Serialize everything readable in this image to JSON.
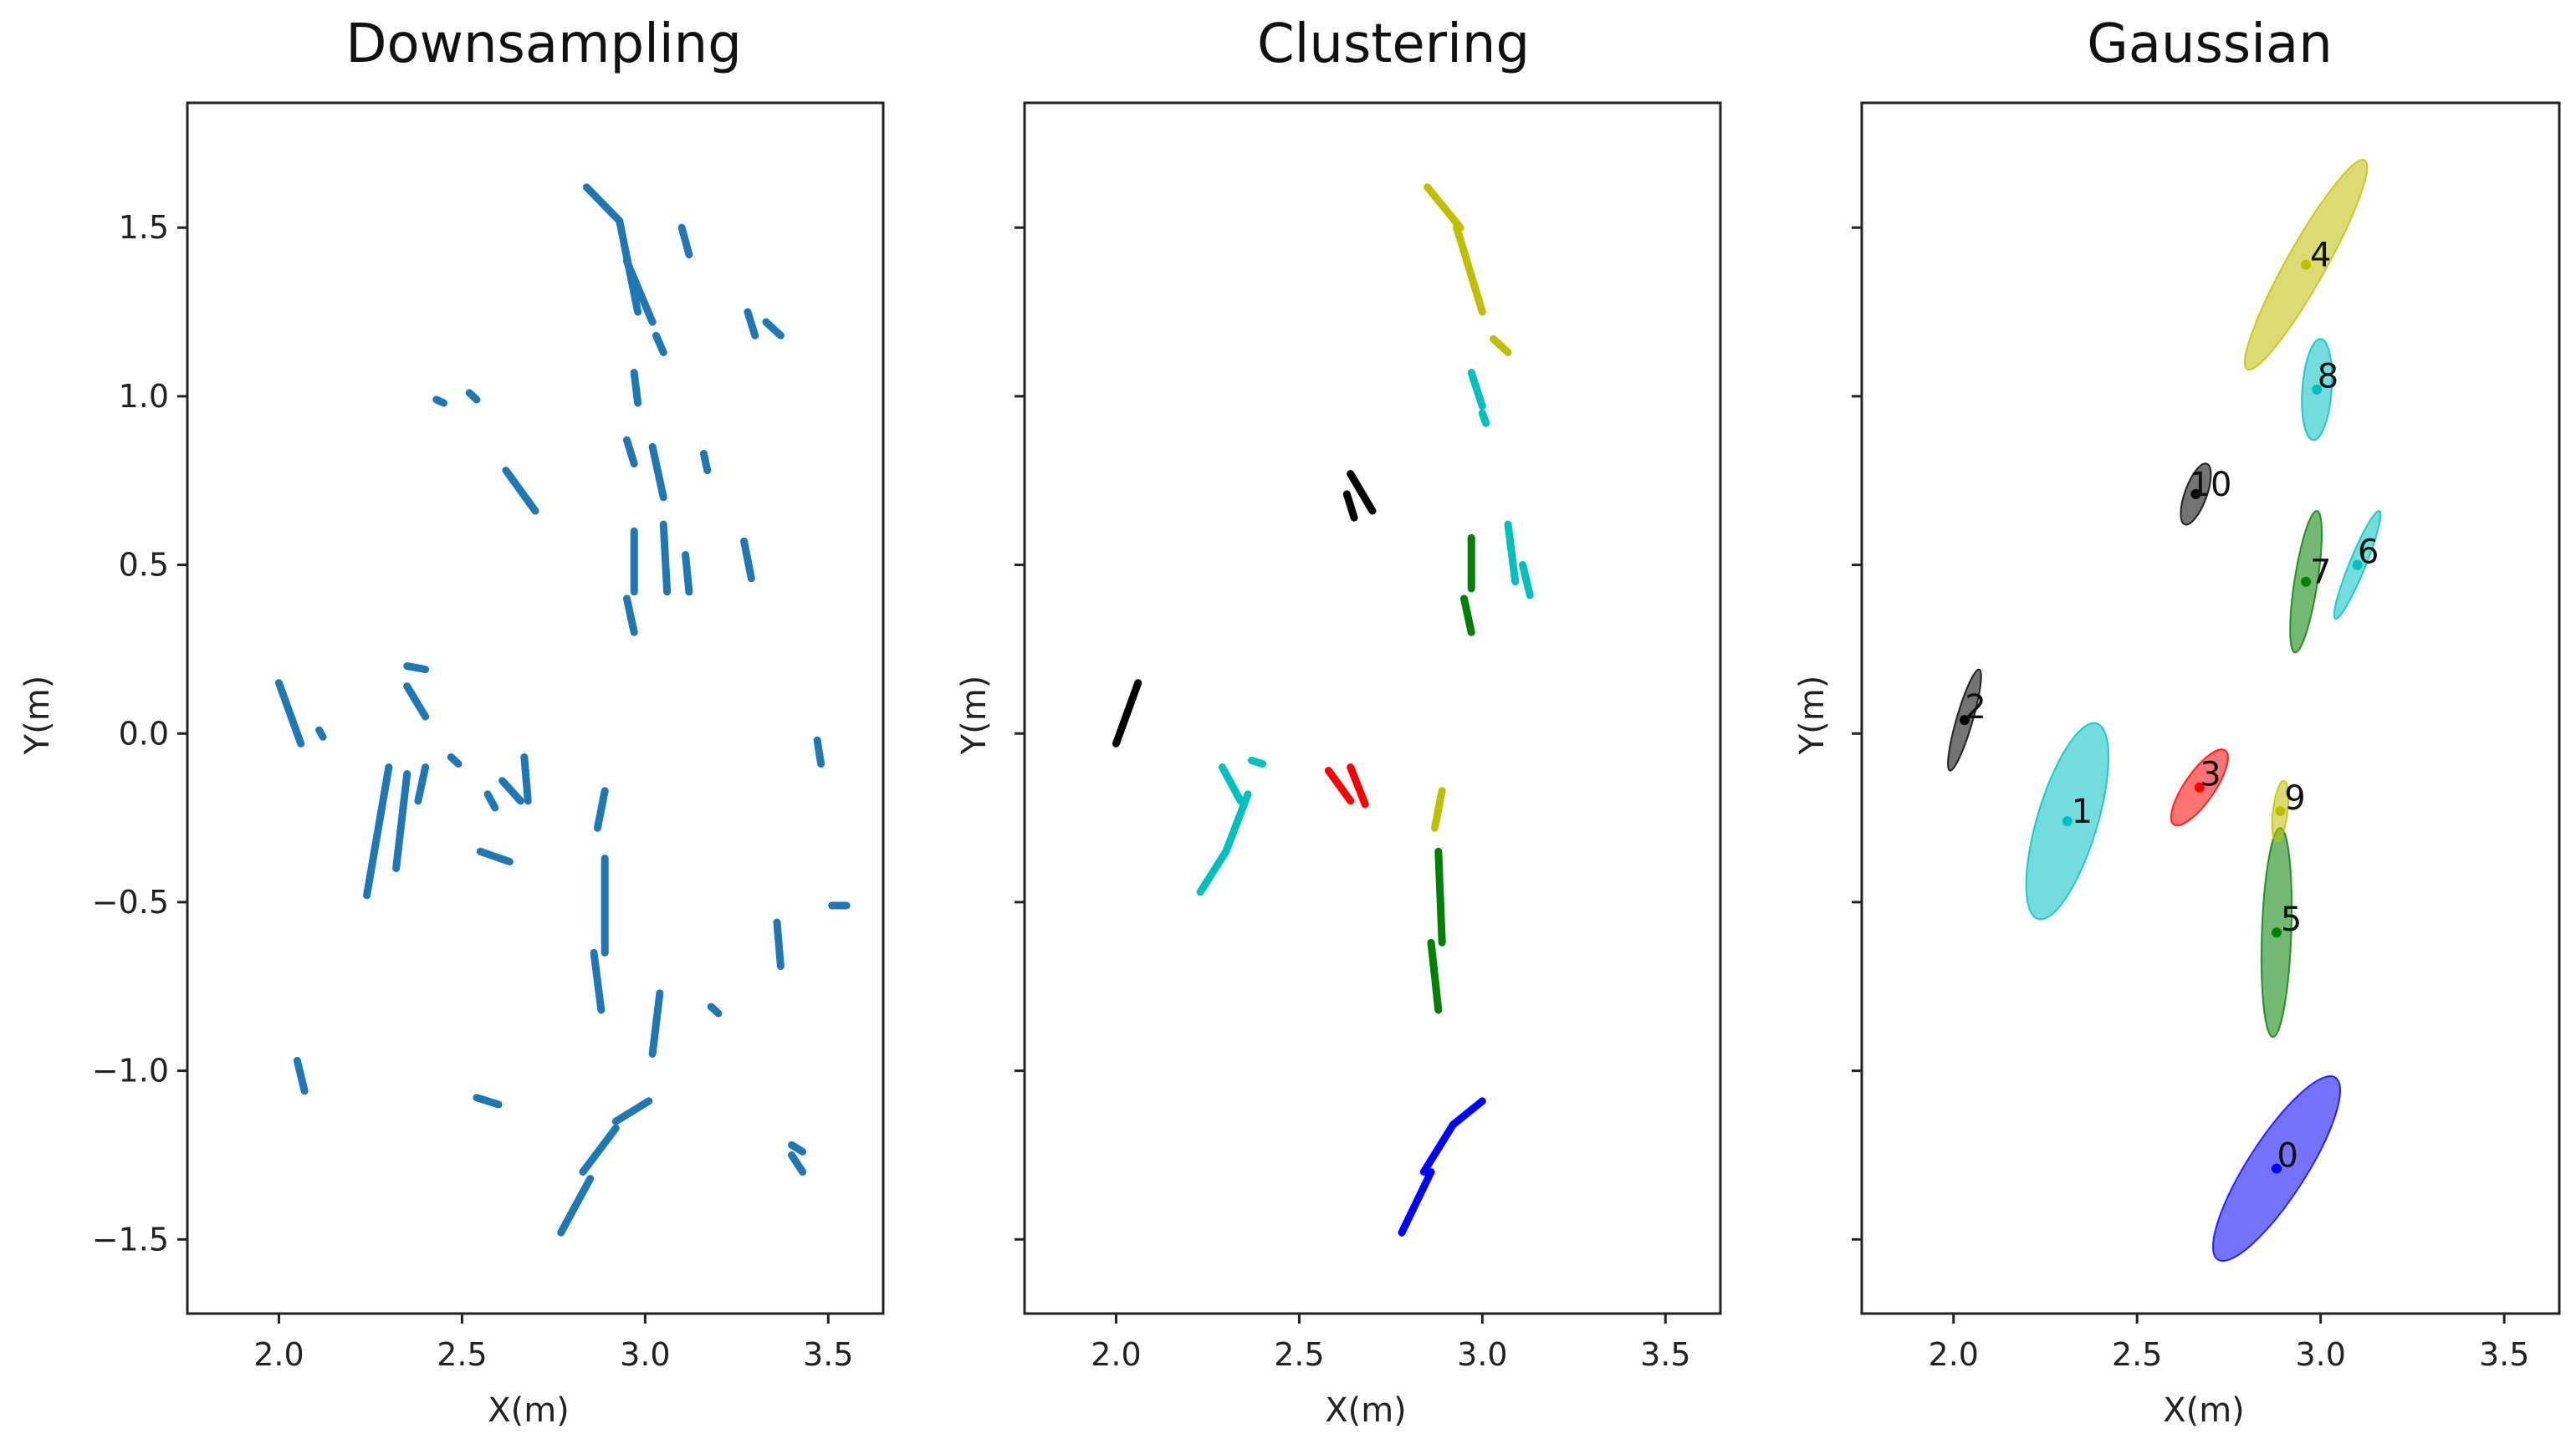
{
  "chart_data": [
    {
      "type": "scatter",
      "title": "Downsampling",
      "xlabel": "X(m)",
      "ylabel": "Y(m)",
      "xlim": [
        1.75,
        3.65
      ],
      "ylim": [
        -1.72,
        1.87
      ],
      "xticks": [
        2.0,
        2.5,
        3.0,
        3.5
      ],
      "xtick_labels": [
        "2.0",
        "2.5",
        "3.0",
        "3.5"
      ],
      "yticks": [
        1.5,
        1.0,
        0.5,
        0.0,
        -0.5,
        -1.0,
        -1.5
      ],
      "ytick_labels": [
        "1.5",
        "1.0",
        "0.5",
        "0.0",
        "−0.5",
        "−1.0",
        "−1.5"
      ],
      "point_color": "#1f77b4",
      "segments": [
        [
          2.84,
          1.62,
          2.93,
          1.52
        ],
        [
          2.93,
          1.52,
          2.98,
          1.25
        ],
        [
          2.95,
          1.4,
          3.02,
          1.22
        ],
        [
          3.1,
          1.5,
          3.12,
          1.42
        ],
        [
          3.03,
          1.18,
          3.05,
          1.13
        ],
        [
          2.97,
          1.07,
          2.98,
          0.98
        ],
        [
          2.43,
          0.99,
          2.45,
          0.98
        ],
        [
          2.52,
          1.01,
          2.54,
          0.99
        ],
        [
          3.28,
          1.25,
          3.3,
          1.18
        ],
        [
          3.33,
          1.22,
          3.37,
          1.18
        ],
        [
          2.62,
          0.78,
          2.7,
          0.66
        ],
        [
          2.95,
          0.87,
          2.97,
          0.8
        ],
        [
          3.02,
          0.85,
          3.05,
          0.7
        ],
        [
          3.16,
          0.83,
          3.17,
          0.78
        ],
        [
          2.97,
          0.6,
          2.97,
          0.42
        ],
        [
          3.05,
          0.62,
          3.06,
          0.42
        ],
        [
          2.95,
          0.4,
          2.97,
          0.3
        ],
        [
          3.11,
          0.53,
          3.12,
          0.42
        ],
        [
          3.27,
          0.57,
          3.29,
          0.46
        ],
        [
          2.0,
          0.15,
          2.06,
          -0.03
        ],
        [
          2.11,
          0.01,
          2.12,
          -0.01
        ],
        [
          2.35,
          0.2,
          2.4,
          0.19
        ],
        [
          2.35,
          0.14,
          2.4,
          0.05
        ],
        [
          2.3,
          -0.1,
          2.24,
          -0.48
        ],
        [
          2.35,
          -0.12,
          2.32,
          -0.4
        ],
        [
          2.38,
          -0.2,
          2.4,
          -0.1
        ],
        [
          2.47,
          -0.07,
          2.49,
          -0.09
        ],
        [
          2.57,
          -0.18,
          2.59,
          -0.22
        ],
        [
          2.61,
          -0.14,
          2.66,
          -0.2
        ],
        [
          2.67,
          -0.07,
          2.68,
          -0.2
        ],
        [
          2.55,
          -0.35,
          2.63,
          -0.38
        ],
        [
          2.89,
          -0.17,
          2.87,
          -0.28
        ],
        [
          2.89,
          -0.37,
          2.89,
          -0.65
        ],
        [
          2.86,
          -0.65,
          2.88,
          -0.82
        ],
        [
          3.04,
          -0.77,
          3.02,
          -0.95
        ],
        [
          3.18,
          -0.81,
          3.2,
          -0.83
        ],
        [
          3.36,
          -0.56,
          3.37,
          -0.69
        ],
        [
          3.47,
          -0.02,
          3.48,
          -0.09
        ],
        [
          3.51,
          -0.51,
          3.55,
          -0.51
        ],
        [
          2.05,
          -0.97,
          2.07,
          -1.06
        ],
        [
          2.54,
          -1.08,
          2.6,
          -1.1
        ],
        [
          2.77,
          -1.48,
          2.85,
          -1.32
        ],
        [
          2.83,
          -1.3,
          2.92,
          -1.17
        ],
        [
          2.92,
          -1.15,
          3.01,
          -1.09
        ],
        [
          3.4,
          -1.25,
          3.43,
          -1.3
        ],
        [
          3.4,
          -1.22,
          3.43,
          -1.24
        ]
      ]
    },
    {
      "type": "scatter",
      "title": "Clustering",
      "xlabel": "X(m)",
      "ylabel": "Y(m)",
      "xlim": [
        1.75,
        3.65
      ],
      "ylim": [
        -1.72,
        1.87
      ],
      "xticks": [
        2.0,
        2.5,
        3.0,
        3.5
      ],
      "xtick_labels": [
        "2.0",
        "2.5",
        "3.0",
        "3.5"
      ],
      "yticks": [
        1.5,
        1.0,
        0.5,
        0.0,
        -0.5,
        -1.0,
        -1.5
      ],
      "clusters": [
        {
          "id": 0,
          "color": "#0000ff",
          "segments": [
            [
              2.78,
              -1.48,
              2.86,
              -1.3
            ],
            [
              2.84,
              -1.3,
              2.92,
              -1.16
            ],
            [
              2.92,
              -1.16,
              3.0,
              -1.09
            ]
          ]
        },
        {
          "id": 1,
          "color": "#00bfbf",
          "segments": [
            [
              2.23,
              -0.47,
              2.3,
              -0.35
            ],
            [
              2.3,
              -0.35,
              2.36,
              -0.18
            ],
            [
              2.29,
              -0.1,
              2.34,
              -0.2
            ],
            [
              2.37,
              -0.08,
              2.4,
              -0.09
            ]
          ]
        },
        {
          "id": 2,
          "color": "#000000",
          "segments": [
            [
              2.0,
              -0.03,
              2.06,
              0.15
            ]
          ]
        },
        {
          "id": 3,
          "color": "#ff0000",
          "segments": [
            [
              2.58,
              -0.11,
              2.64,
              -0.2
            ],
            [
              2.64,
              -0.1,
              2.68,
              -0.21
            ]
          ]
        },
        {
          "id": 4,
          "color": "#bfbf00",
          "segments": [
            [
              2.85,
              1.62,
              2.94,
              1.5
            ],
            [
              2.93,
              1.5,
              3.0,
              1.25
            ],
            [
              3.03,
              1.17,
              3.07,
              1.13
            ]
          ]
        },
        {
          "id": 5,
          "color": "#008000",
          "segments": [
            [
              2.88,
              -0.35,
              2.89,
              -0.62
            ],
            [
              2.86,
              -0.62,
              2.88,
              -0.82
            ]
          ]
        },
        {
          "id": 6,
          "color": "#00bfbf",
          "segments": [
            [
              3.07,
              0.62,
              3.09,
              0.45
            ],
            [
              3.11,
              0.5,
              3.13,
              0.41
            ]
          ]
        },
        {
          "id": 7,
          "color": "#008000",
          "segments": [
            [
              2.97,
              0.58,
              2.97,
              0.43
            ],
            [
              2.95,
              0.4,
              2.97,
              0.3
            ]
          ]
        },
        {
          "id": 8,
          "color": "#00bfbf",
          "segments": [
            [
              2.97,
              1.07,
              3.0,
              0.97
            ],
            [
              3.0,
              0.95,
              3.01,
              0.92
            ]
          ]
        },
        {
          "id": 9,
          "color": "#bfbf00",
          "segments": [
            [
              2.89,
              -0.17,
              2.87,
              -0.28
            ]
          ]
        },
        {
          "id": 10,
          "color": "#000000",
          "segments": [
            [
              2.64,
              0.77,
              2.7,
              0.66
            ],
            [
              2.63,
              0.71,
              2.65,
              0.64
            ]
          ]
        }
      ]
    },
    {
      "type": "scatter",
      "title": "Gaussian",
      "xlabel": "X(m)",
      "ylabel": "Y(m)",
      "xlim": [
        1.75,
        3.65
      ],
      "ylim": [
        -1.72,
        1.87
      ],
      "xticks": [
        2.0,
        2.5,
        3.0,
        3.5
      ],
      "xtick_labels": [
        "2.0",
        "2.5",
        "3.0",
        "3.5"
      ],
      "yticks": [
        1.5,
        1.0,
        0.5,
        0.0,
        -0.5,
        -1.0,
        -1.5
      ],
      "gaussians": [
        {
          "id": "0",
          "color": "#0000ff",
          "mean": [
            2.88,
            -1.29
          ],
          "label_at": [
            2.91,
            -1.25
          ],
          "axis_end": [
            3.04,
            -1.02
          ],
          "minor_end": [
            2.81,
            -1.33
          ]
        },
        {
          "id": "1",
          "color": "#00bfbf",
          "mean": [
            2.31,
            -0.26
          ],
          "label_at": [
            2.35,
            -0.23
          ],
          "axis_end": [
            2.39,
            0.03
          ],
          "minor_end": [
            2.23,
            -0.28
          ]
        },
        {
          "id": "2",
          "color": "#000000",
          "mean": [
            2.03,
            0.04
          ],
          "label_at": [
            2.06,
            0.08
          ],
          "axis_end": [
            2.07,
            0.19
          ],
          "minor_end": [
            2.01,
            0.03
          ]
        },
        {
          "id": "3",
          "color": "#ff0000",
          "mean": [
            2.67,
            -0.16
          ],
          "label_at": [
            2.7,
            -0.12
          ],
          "axis_end": [
            2.74,
            -0.05
          ],
          "minor_end": [
            2.64,
            -0.19
          ]
        },
        {
          "id": "4",
          "color": "#bfbf00",
          "mean": [
            2.96,
            1.39
          ],
          "label_at": [
            3.0,
            1.42
          ],
          "axis_end": [
            3.12,
            1.7
          ],
          "minor_end": [
            2.91,
            1.41
          ]
        },
        {
          "id": "5",
          "color": "#008000",
          "mean": [
            2.88,
            -0.59
          ],
          "label_at": [
            2.92,
            -0.55
          ],
          "axis_end": [
            2.89,
            -0.28
          ],
          "minor_end": [
            2.84,
            -0.59
          ]
        },
        {
          "id": "6",
          "color": "#00bfbf",
          "mean": [
            3.1,
            0.5
          ],
          "label_at": [
            3.13,
            0.54
          ],
          "axis_end": [
            3.16,
            0.66
          ],
          "minor_end": [
            3.08,
            0.51
          ]
        },
        {
          "id": "7",
          "color": "#008000",
          "mean": [
            2.96,
            0.45
          ],
          "label_at": [
            3.0,
            0.48
          ],
          "axis_end": [
            2.99,
            0.66
          ],
          "minor_end": [
            2.93,
            0.44
          ]
        },
        {
          "id": "8",
          "color": "#00bfbf",
          "mean": [
            2.99,
            1.02
          ],
          "label_at": [
            3.02,
            1.06
          ],
          "axis_end": [
            3.0,
            1.17
          ],
          "minor_end": [
            2.95,
            1.02
          ]
        },
        {
          "id": "9",
          "color": "#bfbf00",
          "mean": [
            2.89,
            -0.23
          ],
          "label_at": [
            2.93,
            -0.19
          ],
          "axis_end": [
            2.9,
            -0.14
          ],
          "minor_end": [
            2.87,
            -0.23
          ]
        },
        {
          "id": "10",
          "color": "#000000",
          "mean": [
            2.66,
            0.71
          ],
          "label_at": [
            2.7,
            0.74
          ],
          "axis_end": [
            2.69,
            0.8
          ],
          "minor_end": [
            2.63,
            0.71
          ]
        }
      ]
    }
  ]
}
